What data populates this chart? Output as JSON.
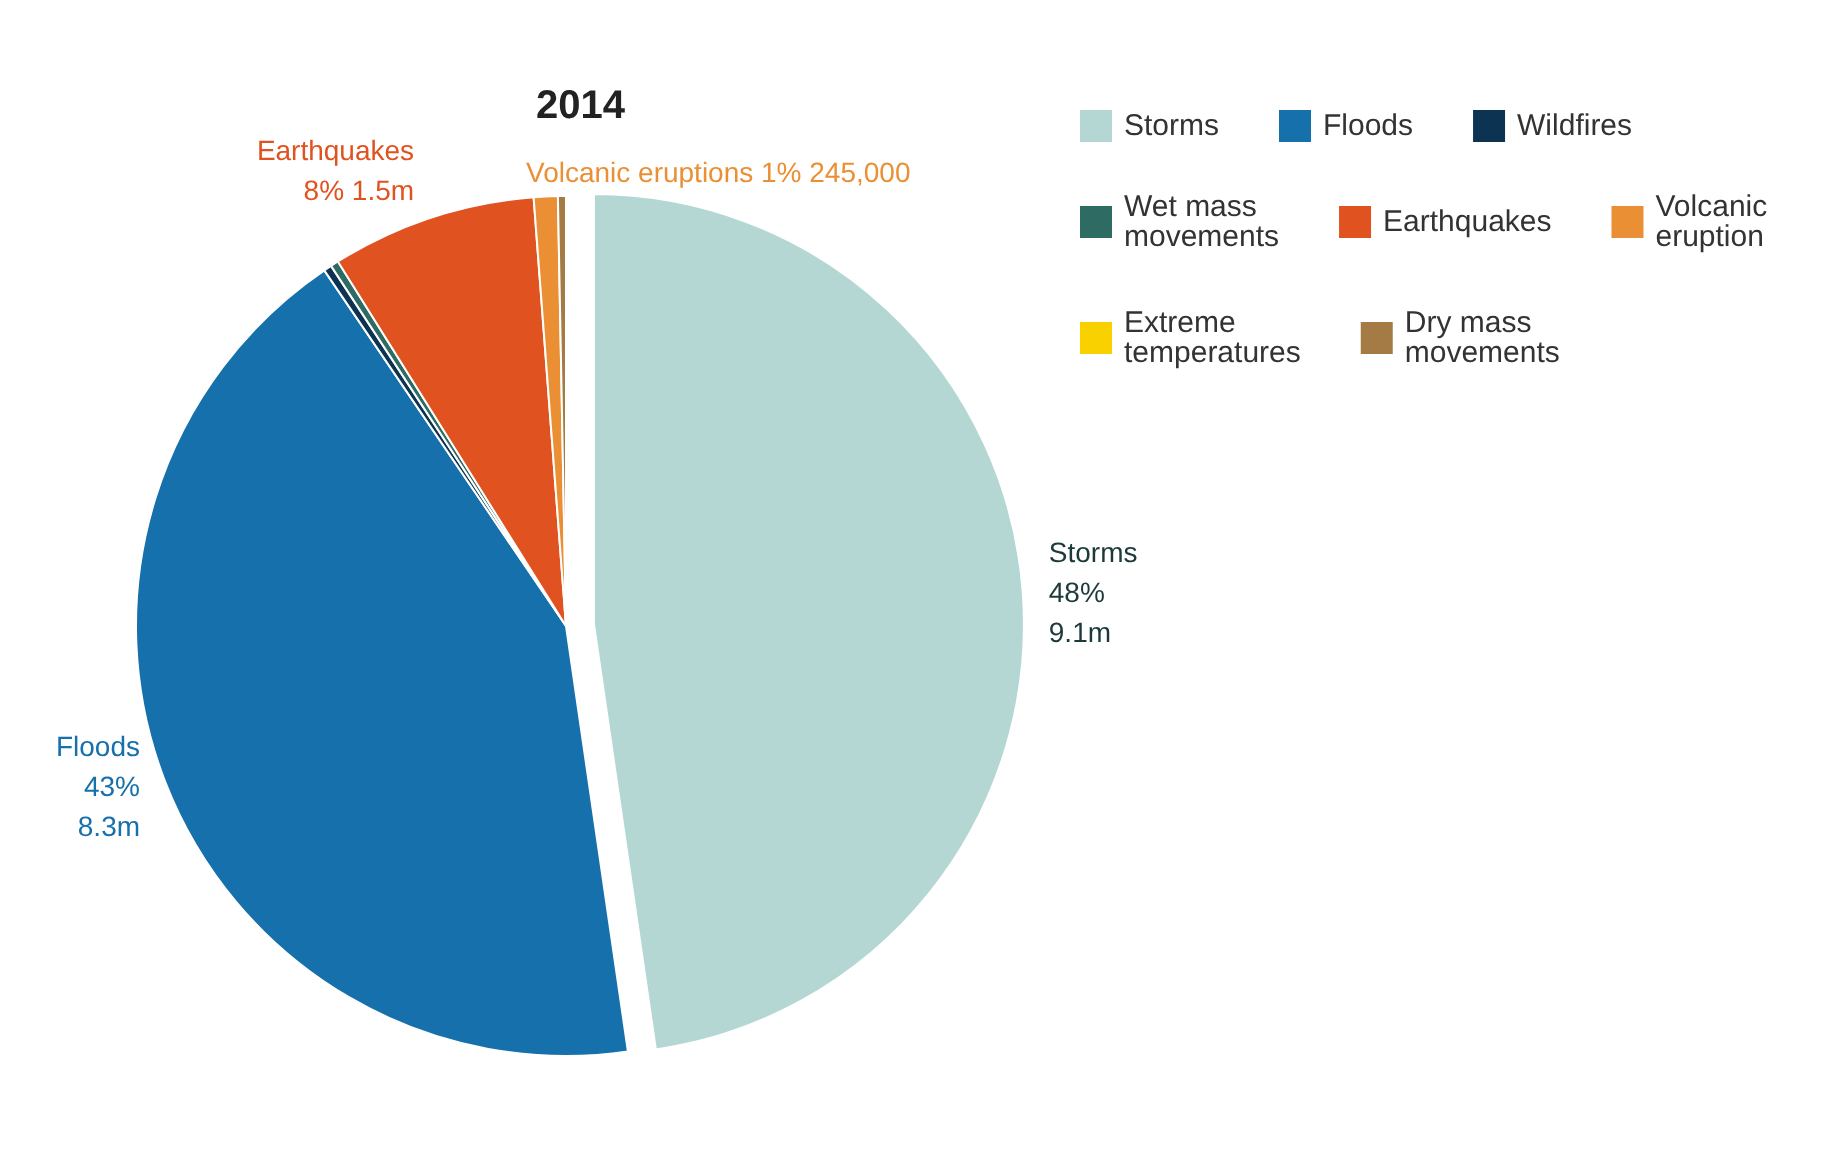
{
  "chart_data": {
    "type": "pie",
    "title": "2014",
    "categories": [
      "Storms",
      "Floods",
      "Wildfires",
      "Wet mass movements",
      "Earthquakes",
      "Volcanic eruption",
      "Extreme temperatures",
      "Dry mass movements"
    ],
    "values": [
      47.7,
      42.8,
      0.3,
      0.3,
      7.7,
      0.9,
      null,
      0.3
    ],
    "colors": [
      "#b4d7d4",
      "#1570ab",
      "#0c3352",
      "#2e6b62",
      "#e0521f",
      "#ea8f33",
      "#f9d100",
      "#a57b45"
    ],
    "value_labels": [
      "Storms\n48%\n9.1m",
      "Floods\n43%\n8.3m",
      null,
      null,
      "Earthquakes\n8% 1.5m",
      "Volcanic eruptions 1% 245,000",
      null,
      null
    ],
    "legend": "top right"
  }
}
